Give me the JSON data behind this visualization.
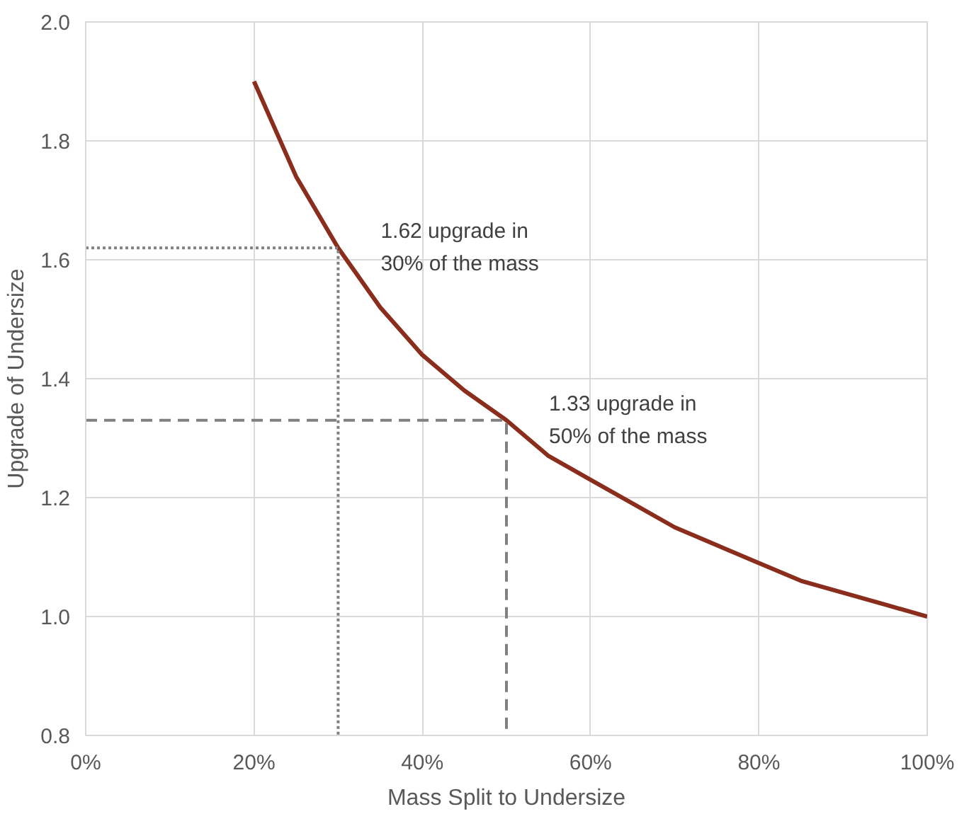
{
  "chart_data": {
    "type": "line",
    "xlabel": "Mass Split to Undersize",
    "ylabel": "Upgrade of Undersize",
    "xlim": [
      0,
      100
    ],
    "ylim": [
      0.8,
      2.0
    ],
    "xticks": [
      {
        "value": 0,
        "label": "0%"
      },
      {
        "value": 20,
        "label": "20%"
      },
      {
        "value": 40,
        "label": "40%"
      },
      {
        "value": 60,
        "label": "60%"
      },
      {
        "value": 80,
        "label": "80%"
      },
      {
        "value": 100,
        "label": "100%"
      }
    ],
    "yticks": [
      {
        "value": 0.8,
        "label": "0.8"
      },
      {
        "value": 1.0,
        "label": "1.0"
      },
      {
        "value": 1.2,
        "label": "1.2"
      },
      {
        "value": 1.4,
        "label": "1.4"
      },
      {
        "value": 1.6,
        "label": "1.6"
      },
      {
        "value": 1.8,
        "label": "1.8"
      },
      {
        "value": 2.0,
        "label": "2.0"
      }
    ],
    "grid": true,
    "marker": "none",
    "series": [
      {
        "color": "#8b2d1c",
        "line_style": "solid",
        "x": [
          20,
          25,
          30,
          35,
          40,
          45,
          50,
          55,
          60,
          65,
          70,
          75,
          80,
          85,
          90,
          95,
          100
        ],
        "values": [
          1.9,
          1.74,
          1.62,
          1.52,
          1.44,
          1.38,
          1.33,
          1.27,
          1.23,
          1.19,
          1.15,
          1.12,
          1.09,
          1.06,
          1.04,
          1.02,
          1.0
        ]
      },
      {
        "color": "#808080",
        "line_style": "dotted",
        "x": [
          0,
          30,
          30
        ],
        "values": [
          1.62,
          1.62,
          0.8
        ]
      },
      {
        "color": "#808080",
        "line_style": "dashed",
        "x": [
          0,
          50,
          50
        ],
        "values": [
          1.33,
          1.33,
          0.8
        ]
      }
    ],
    "annotations": [
      {
        "text": "1.62 upgrade in\n30% of the mass",
        "x": 30,
        "y": 1.62
      },
      {
        "text": "1.33 upgrade in\n50% of the mass",
        "x": 50,
        "y": 1.33
      }
    ]
  }
}
